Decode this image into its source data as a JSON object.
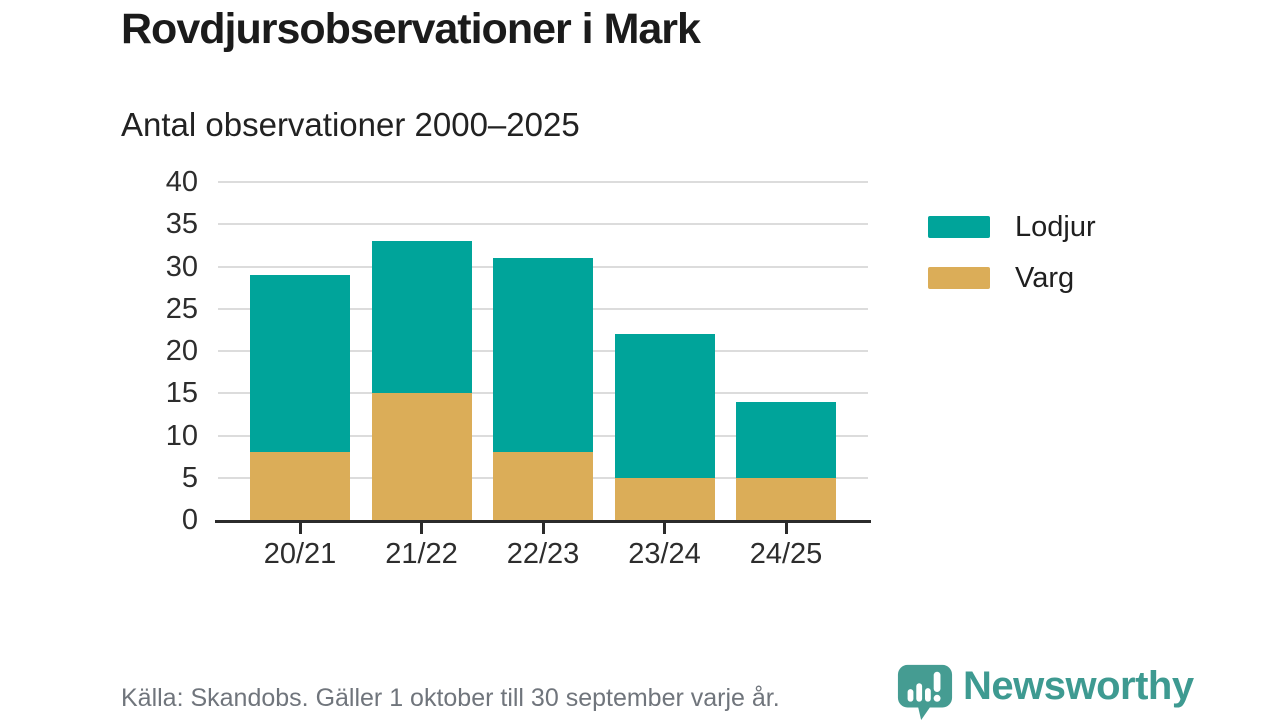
{
  "header": {
    "title": "Rovdjursobservationer i Mark",
    "subtitle": "Antal observationer 2000–2025"
  },
  "chart_data": {
    "type": "bar",
    "stacked": true,
    "title": "Rovdjursobservationer i Mark",
    "subtitle": "Antal observationer 2000–2025",
    "categories": [
      "20/21",
      "21/22",
      "22/23",
      "23/24",
      "24/25"
    ],
    "series": [
      {
        "name": "Lodjur",
        "color": "#00a49a",
        "values": [
          21,
          18,
          23,
          17,
          9
        ]
      },
      {
        "name": "Varg",
        "color": "#dbad58",
        "values": [
          8,
          15,
          8,
          5,
          5
        ]
      }
    ],
    "stack_totals": [
      29,
      33,
      31,
      22,
      14
    ],
    "xlabel": "",
    "ylabel": "",
    "ylim": [
      0,
      40
    ],
    "yticks": [
      0,
      5,
      10,
      15,
      20,
      25,
      30,
      35,
      40
    ],
    "grid": true,
    "gridline_color": "#dcdcdc",
    "axis_color": "#2b2b2b",
    "legend_position": "right"
  },
  "footer": {
    "source": "Källa: Skandobs. Gäller 1 oktober till 30 september varje år.",
    "brand": "Newsworthy",
    "brand_color": "#3e9a91"
  }
}
